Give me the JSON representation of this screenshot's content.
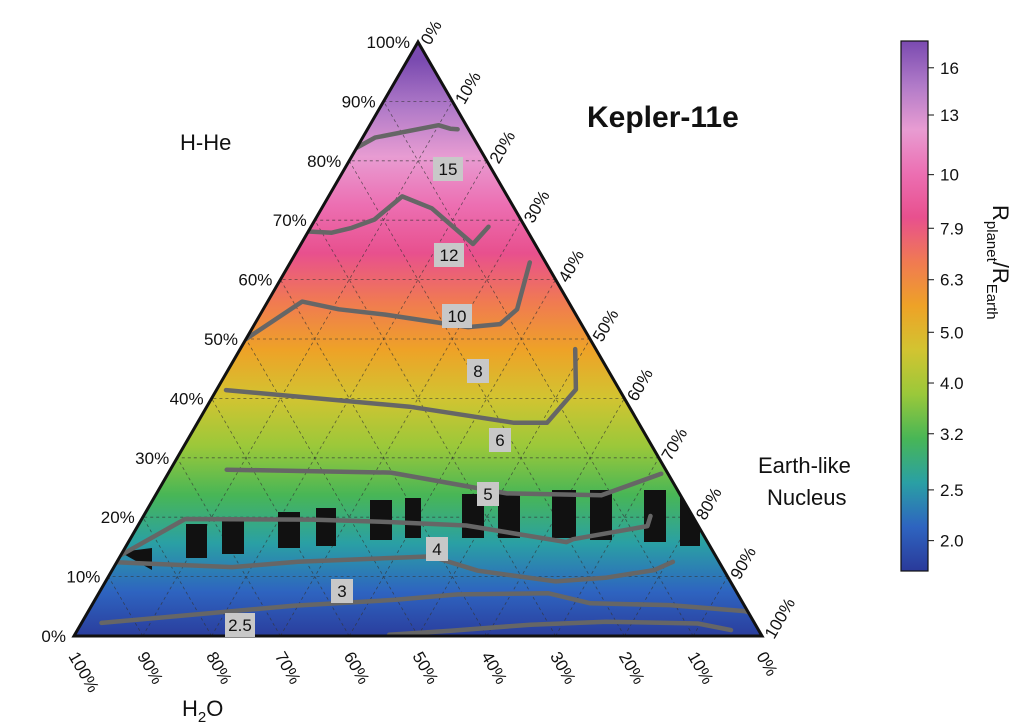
{
  "chart_data": {
    "type": "ternary-contour",
    "title": "Kepler-11e",
    "vertex_labels": {
      "top": "H-He",
      "bottom_left": "H2O",
      "right": "Earth-like Nucleus"
    },
    "vertex_label_lines": {
      "top": [
        "H-He"
      ],
      "bottom_left_main": "H",
      "bottom_left_sub": "2",
      "bottom_left_rest": "O",
      "right": [
        "Earth-like",
        "Nucleus"
      ]
    },
    "axes": {
      "left_ticks": [
        "0%",
        "10%",
        "20%",
        "30%",
        "40%",
        "50%",
        "60%",
        "70%",
        "80%",
        "90%",
        "100%"
      ],
      "bottom_ticks": [
        "100%",
        "90%",
        "80%",
        "70%",
        "60%",
        "50%",
        "40%",
        "30%",
        "20%",
        "10%",
        "0%"
      ],
      "right_ticks": [
        "0%",
        "10%",
        "20%",
        "30%",
        "40%",
        "50%",
        "60%",
        "70%",
        "80%",
        "90%",
        "100%"
      ]
    },
    "contour_labels": [
      "2.5",
      "3",
      "4",
      "5",
      "6",
      "8",
      "10",
      "12",
      "15"
    ],
    "contours": [
      {
        "level": "15",
        "points": [
          [
            0.853,
            0.016
          ],
          [
            0.854,
            0.026
          ],
          [
            0.86,
            0.04
          ],
          [
            0.839,
            0.143
          ],
          [
            0.797,
            0.23
          ],
          [
            0.79,
            0.23
          ],
          [
            0.781,
            0.241
          ],
          [
            0.777,
            0.256
          ],
          [
            0.77,
            0.27
          ],
          [
            0.76,
            0.293
          ]
        ]
      },
      {
        "level": "12",
        "points": [
          [
            0.689,
            0.053
          ],
          [
            0.66,
            0.09
          ],
          [
            0.72,
            0.12
          ],
          [
            0.74,
            0.153
          ],
          [
            0.701,
            0.213
          ],
          [
            0.687,
            0.253
          ],
          [
            0.679,
            0.286
          ],
          [
            0.681,
            0.319
          ]
        ]
      },
      {
        "level": "10",
        "points": [
          [
            0.629,
            0.023
          ],
          [
            0.55,
            0.081
          ],
          [
            0.525,
            0.118
          ],
          [
            0.52,
            0.167
          ],
          [
            0.541,
            0.277
          ],
          [
            0.55,
            0.34
          ],
          [
            0.563,
            0.387
          ],
          [
            0.5,
            0.5
          ]
        ]
      },
      {
        "level": "8",
        "points": [
          [
            0.483,
            0.03
          ],
          [
            0.415,
            0.063
          ],
          [
            0.359,
            0.133
          ],
          [
            0.359,
            0.181
          ],
          [
            0.386,
            0.319
          ],
          [
            0.414,
            0.572
          ]
        ]
      },
      {
        "level": "6",
        "points": [
          [
            0.273,
            0.01
          ],
          [
            0.237,
            0.115
          ],
          [
            0.24,
            0.251
          ],
          [
            0.275,
            0.402
          ],
          [
            0.28,
            0.638
          ]
        ]
      },
      {
        "level": "5",
        "points": [
          [
            0.202,
            0.061
          ],
          [
            0.185,
            0.074
          ],
          [
            0.163,
            0.193
          ],
          [
            0.158,
            0.205
          ],
          [
            0.186,
            0.337
          ],
          [
            0.192,
            0.447
          ],
          [
            0.196,
            0.557
          ],
          [
            0.197,
            0.74
          ],
          [
            0.136,
            0.864
          ]
        ]
      },
      {
        "level": "4",
        "points": [
          [
            0.125,
            0.067
          ],
          [
            0.111,
            0.101
          ],
          [
            0.098,
            0.179
          ],
          [
            0.092,
            0.254
          ],
          [
            0.11,
            0.358
          ],
          [
            0.134,
            0.414
          ],
          [
            0.125,
            0.612
          ],
          [
            0.116,
            0.712
          ],
          [
            0.124,
            0.876
          ]
        ]
      },
      {
        "level": "3",
        "points": [
          [
            0.04,
            0.0
          ],
          [
            0.042,
            0.004
          ],
          [
            0.052,
            0.108
          ],
          [
            0.055,
            0.222
          ],
          [
            0.072,
            0.275
          ],
          [
            0.07,
            0.407
          ],
          [
            0.061,
            0.502
          ],
          [
            0.051,
            0.656
          ],
          [
            0.022,
            0.949
          ]
        ]
      },
      {
        "level": "2.5",
        "points": [
          [
            0.01,
            0.04
          ],
          [
            0.021,
            0.083
          ],
          [
            0.024,
            0.215
          ],
          [
            0.019,
            0.327
          ],
          [
            0.009,
            0.448
          ],
          [
            0.002,
            0.541
          ]
        ]
      }
    ],
    "colorbar": {
      "label": "Rplanet/REarth",
      "label_main_1": "R",
      "label_sub_1": "planet",
      "label_mid": "/R",
      "label_sub_2": "Earth",
      "ticks": [
        "16",
        "13",
        "10",
        "7.9",
        "6.3",
        "5.0",
        "4.0",
        "3.2",
        "2.5",
        "2.0"
      ],
      "tick_values": [
        16,
        13,
        10,
        7.9,
        6.3,
        5.0,
        4.0,
        3.2,
        2.5,
        2.0
      ],
      "log_scale": true,
      "range": [
        1.75,
        18
      ],
      "colors": [
        "#2a3a9a",
        "#2e64c0",
        "#2aa0a4",
        "#48b656",
        "#9ac83a",
        "#d2c431",
        "#eea227",
        "#f07a52",
        "#e8508e",
        "#ec6fb2",
        "#e89cd2",
        "#b07ac8",
        "#7a4ab0"
      ]
    },
    "grid": "dashed",
    "infeasible_region": "black vertical bars between the 4 and 5 contours"
  }
}
